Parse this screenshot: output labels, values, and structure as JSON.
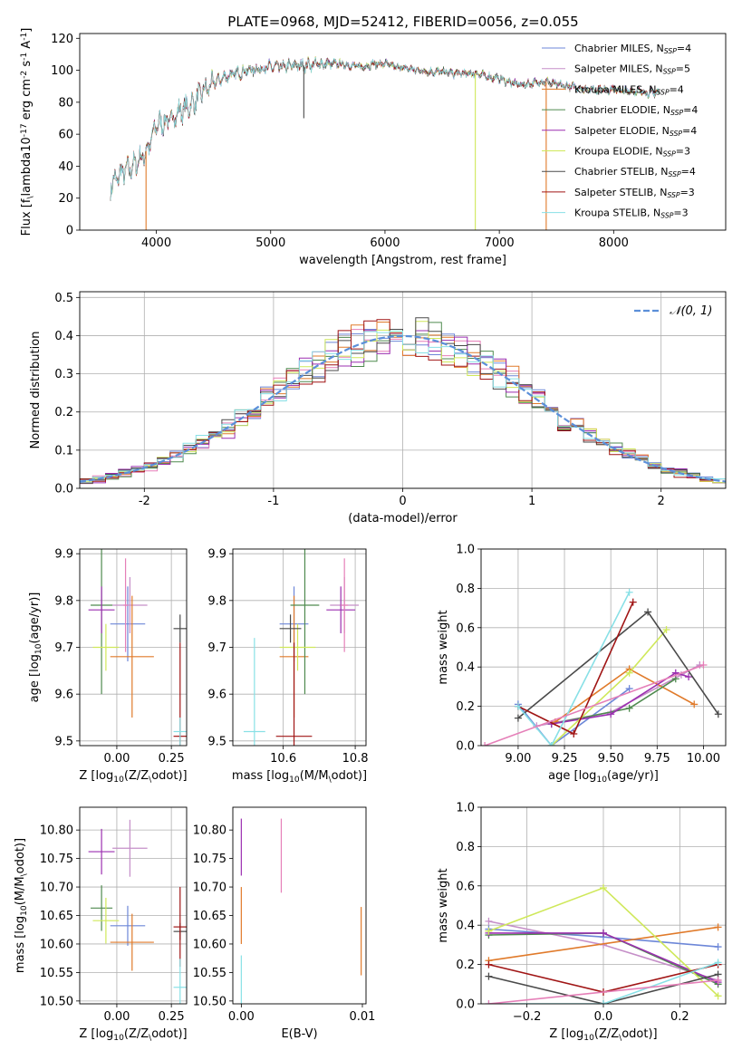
{
  "figure": {
    "title": "PLATE=0968, MJD=52412, FIBERID=0056, z=0.055"
  },
  "colors": {
    "Chabrier MILES": "#6d87d8",
    "Salpeter MILES": "#c58fc8",
    "Kroupa MILES": "#e07a2a",
    "Chabrier ELODIE": "#4f8a4f",
    "Salpeter ELODIE": "#9b2fb0",
    "Kroupa ELODIE": "#cfe85a",
    "Chabrier STELIB": "#4a4a4a",
    "Salpeter STELIB": "#a01515",
    "Kroupa STELIB": "#88e0e6",
    "normal": "#5b8fd9",
    "pink": "#e57fb8"
  },
  "chart_data": [
    {
      "id": "spectrum",
      "type": "line",
      "xlabel": "wavelength [Angstrom, rest frame]",
      "ylabel": "Flux [f$_\\lambda$10$^{-17}$ erg cm$^{-2}$ s$^{-1}$ A$^{-1}$]",
      "xlim": [
        3330,
        8980
      ],
      "ylim": [
        0,
        123
      ],
      "xticks": [
        4000,
        5000,
        6000,
        7000,
        8000
      ],
      "yticks": [
        0,
        20,
        40,
        60,
        80,
        100,
        120
      ],
      "grid": false,
      "legend_position": "upper right",
      "x_range": [
        3600,
        8400
      ],
      "spectrum_shape": [
        [
          3600,
          28
        ],
        [
          3700,
          36
        ],
        [
          3800,
          40
        ],
        [
          3900,
          48
        ],
        [
          3950,
          55
        ],
        [
          4000,
          66
        ],
        [
          4100,
          68
        ],
        [
          4200,
          74
        ],
        [
          4300,
          78
        ],
        [
          4400,
          86
        ],
        [
          4500,
          92
        ],
        [
          4600,
          96
        ],
        [
          4700,
          98
        ],
        [
          4800,
          100
        ],
        [
          4900,
          101
        ],
        [
          5000,
          102
        ],
        [
          5100,
          102
        ],
        [
          5200,
          103
        ],
        [
          5300,
          103
        ],
        [
          5400,
          104
        ],
        [
          5500,
          104
        ],
        [
          5600,
          104
        ],
        [
          5700,
          103
        ],
        [
          5800,
          102
        ],
        [
          5900,
          104
        ],
        [
          6000,
          104
        ],
        [
          6100,
          102
        ],
        [
          6200,
          101
        ],
        [
          6300,
          100
        ],
        [
          6400,
          99
        ],
        [
          6500,
          99
        ],
        [
          6600,
          98
        ],
        [
          6700,
          98
        ],
        [
          6800,
          98
        ],
        [
          6900,
          96
        ],
        [
          7000,
          95
        ],
        [
          7100,
          92
        ],
        [
          7200,
          91
        ],
        [
          7300,
          92
        ],
        [
          7400,
          93
        ],
        [
          7500,
          91
        ],
        [
          7600,
          90
        ],
        [
          7700,
          89
        ],
        [
          7800,
          88
        ],
        [
          7900,
          88
        ],
        [
          8000,
          88
        ],
        [
          8100,
          87
        ],
        [
          8200,
          87
        ],
        [
          8300,
          86
        ],
        [
          8400,
          86
        ]
      ],
      "spikes": [
        {
          "x": 3910,
          "y": 0
        },
        {
          "x": 5290,
          "y": 70
        },
        {
          "x": 6790,
          "y": 0
        },
        {
          "x": 7410,
          "y": 0
        }
      ],
      "series": [
        {
          "name": "Chabrier MILES",
          "nssp": "4"
        },
        {
          "name": "Salpeter MILES",
          "nssp": "5"
        },
        {
          "name": "Kroupa MILES",
          "nssp": "4"
        },
        {
          "name": "Chabrier ELODIE",
          "nssp": "4"
        },
        {
          "name": "Salpeter ELODIE",
          "nssp": "4"
        },
        {
          "name": "Kroupa ELODIE",
          "nssp": "3"
        },
        {
          "name": "Chabrier STELIB",
          "nssp": "4"
        },
        {
          "name": "Salpeter STELIB",
          "nssp": "3"
        },
        {
          "name": "Kroupa STELIB",
          "nssp": "3"
        }
      ]
    },
    {
      "id": "residuals",
      "type": "line",
      "xlabel": "(data-model)/error",
      "ylabel": "Normed distribution",
      "xlim": [
        -2.5,
        2.5
      ],
      "ylim": [
        0,
        0.515
      ],
      "xticks": [
        -2,
        -1,
        0,
        1,
        2
      ],
      "yticks": [
        0.0,
        0.1,
        0.2,
        0.3,
        0.4,
        0.5
      ],
      "grid": true,
      "legend_position": "upper right",
      "reference_curve": {
        "name": "𝒩(0, 1)",
        "mean": 0,
        "sigma": 1
      },
      "bin_width": 0.1,
      "histogram_series": [
        "Chabrier MILES",
        "Salpeter MILES",
        "Kroupa MILES",
        "Chabrier ELODIE",
        "Salpeter ELODIE",
        "Kroupa ELODIE",
        "Chabrier STELIB",
        "Salpeter STELIB",
        "Kroupa STELIB"
      ]
    },
    {
      "id": "z-age",
      "type": "scatter",
      "xlabel": "Z [log$_{10}$(Z/Z$_\\odot$)]",
      "ylabel": "age  [log$_{10}$(age/yr)]",
      "xlim": [
        -0.17,
        0.32
      ],
      "ylim": [
        9.49,
        9.91
      ],
      "xticks": [
        0.0,
        0.25
      ],
      "xticklabels": [
        "0.00",
        "0.25"
      ],
      "yticks": [
        9.5,
        9.6,
        9.7,
        9.8,
        9.9
      ],
      "grid": true,
      "errorbars": [
        {
          "series": "Chabrier MILES",
          "x": 0.05,
          "y": 9.75,
          "xerr": 0.08,
          "yerr": 0.08
        },
        {
          "series": "Salpeter MILES",
          "x": 0.06,
          "y": 9.79,
          "xerr": 0.08,
          "yerr": 0.06
        },
        {
          "series": "Kroupa MILES",
          "x": 0.07,
          "y": 9.68,
          "xerr": 0.1,
          "yerr": 0.13
        },
        {
          "series": "Chabrier ELODIE",
          "x": -0.07,
          "y": 9.79,
          "xerr": 0.05,
          "yerr": 0.19
        },
        {
          "series": "Salpeter ELODIE",
          "x": -0.07,
          "y": 9.78,
          "xerr": 0.06,
          "yerr": 0.05
        },
        {
          "series": "Kroupa ELODIE",
          "x": -0.05,
          "y": 9.7,
          "xerr": 0.06,
          "yerr": 0.05
        },
        {
          "series": "Chabrier STELIB",
          "x": 0.29,
          "y": 9.74,
          "xerr": 0.03,
          "yerr": 0.03
        },
        {
          "series": "Salpeter STELIB",
          "x": 0.29,
          "y": 9.51,
          "xerr": 0.03,
          "yerr": 0.2
        },
        {
          "series": "Kroupa STELIB",
          "x": 0.29,
          "y": 9.52,
          "xerr": 0.03,
          "yerr": 0.03
        },
        {
          "series": "pink",
          "x": 0.04,
          "y": 9.79,
          "xerr": 0.01,
          "yerr": 0.1
        }
      ]
    },
    {
      "id": "mass-age",
      "type": "scatter",
      "xlabel": "mass [log$_{10}$(M/M$_\\odot$)]",
      "ylabel": "",
      "xlim": [
        10.46,
        10.83
      ],
      "ylim": [
        9.49,
        9.91
      ],
      "xticks": [
        10.6,
        10.8
      ],
      "xticklabels": [
        "10.6",
        "10.8"
      ],
      "yticks": [
        9.5,
        9.6,
        9.7,
        9.8,
        9.9
      ],
      "grid": true,
      "errorbars": [
        {
          "series": "Chabrier MILES",
          "x": 10.63,
          "y": 9.75,
          "xerr": 0.04,
          "yerr": 0.08
        },
        {
          "series": "Salpeter MILES",
          "x": 10.77,
          "y": 9.79,
          "xerr": 0.04,
          "yerr": 0.06
        },
        {
          "series": "Kroupa MILES",
          "x": 10.63,
          "y": 9.68,
          "xerr": 0.04,
          "yerr": 0.13
        },
        {
          "series": "Chabrier ELODIE",
          "x": 10.66,
          "y": 9.79,
          "xerr": 0.04,
          "yerr": 0.19
        },
        {
          "series": "Salpeter ELODIE",
          "x": 10.76,
          "y": 9.78,
          "xerr": 0.04,
          "yerr": 0.05
        },
        {
          "series": "Kroupa ELODIE",
          "x": 10.64,
          "y": 9.7,
          "xerr": 0.05,
          "yerr": 0.05
        },
        {
          "series": "Chabrier STELIB",
          "x": 10.62,
          "y": 9.74,
          "xerr": 0.03,
          "yerr": 0.03
        },
        {
          "series": "Salpeter STELIB",
          "x": 10.63,
          "y": 9.51,
          "xerr": 0.05,
          "yerr": 0.2
        },
        {
          "series": "Kroupa STELIB",
          "x": 10.52,
          "y": 9.52,
          "xerr": 0.03,
          "yerr": 0.2
        },
        {
          "series": "pink",
          "x": 10.77,
          "y": 9.79,
          "xerr": 0.01,
          "yerr": 0.1
        }
      ]
    },
    {
      "id": "age-weight",
      "type": "line",
      "xlabel": "age  [log$_{10}$(age/yr)]",
      "ylabel": "mass weight",
      "xlim": [
        8.8,
        10.12
      ],
      "ylim": [
        0,
        1.0
      ],
      "xticks": [
        9.0,
        9.25,
        9.5,
        9.75,
        10.0
      ],
      "xticklabels": [
        "9.00",
        "9.25",
        "9.50",
        "9.75",
        "10.00"
      ],
      "yticks": [
        0.0,
        0.2,
        0.4,
        0.6,
        0.8,
        1.0
      ],
      "grid": true,
      "series": [
        {
          "name": "Chabrier MILES",
          "x": [
            9.0,
            9.18,
            9.6
          ],
          "y": [
            0.21,
            0.0,
            0.29
          ]
        },
        {
          "name": "Salpeter MILES",
          "x": [
            9.1,
            9.5,
            9.88,
            9.98
          ],
          "y": [
            0.1,
            0.17,
            0.36,
            0.41
          ]
        },
        {
          "name": "Kroupa MILES",
          "x": [
            9.2,
            9.6,
            9.95
          ],
          "y": [
            0.12,
            0.39,
            0.21
          ]
        },
        {
          "name": "Chabrier ELODIE",
          "x": [
            9.18,
            9.6,
            9.85
          ],
          "y": [
            0.11,
            0.19,
            0.34
          ]
        },
        {
          "name": "Salpeter ELODIE",
          "x": [
            9.18,
            9.5,
            9.85,
            9.92
          ],
          "y": [
            0.11,
            0.16,
            0.37,
            0.35
          ]
        },
        {
          "name": "Kroupa ELODIE",
          "x": [
            9.18,
            9.6,
            9.8
          ],
          "y": [
            0.0,
            0.37,
            0.59
          ]
        },
        {
          "name": "Chabrier STELIB",
          "x": [
            9.0,
            9.7,
            10.08
          ],
          "y": [
            0.14,
            0.68,
            0.16
          ]
        },
        {
          "name": "Salpeter STELIB",
          "x": [
            9.0,
            9.3,
            9.62
          ],
          "y": [
            0.2,
            0.06,
            0.73
          ]
        },
        {
          "name": "Kroupa STELIB",
          "x": [
            9.0,
            9.18,
            9.6
          ],
          "y": [
            0.2,
            0.0,
            0.78
          ]
        },
        {
          "name": "pink",
          "x": [
            8.82,
            10.0
          ],
          "y": [
            0.0,
            0.41
          ]
        }
      ]
    },
    {
      "id": "z-mass",
      "type": "scatter",
      "xlabel": "Z [log$_{10}$(Z/Z$_\\odot$)]",
      "ylabel": "mass [log$_{10}$(M/M$_\\odot$)]",
      "xlim": [
        -0.17,
        0.32
      ],
      "ylim": [
        10.495,
        10.84
      ],
      "xticks": [
        0.0,
        0.25
      ],
      "xticklabels": [
        "0.00",
        "0.25"
      ],
      "yticks": [
        10.5,
        10.55,
        10.6,
        10.65,
        10.7,
        10.75,
        10.8
      ],
      "yticklabels": [
        "10.50",
        "10.55",
        "10.60",
        "10.65",
        "10.70",
        "10.75",
        "10.80"
      ],
      "grid": true,
      "errorbars": [
        {
          "series": "Chabrier MILES",
          "x": 0.05,
          "y": 10.632,
          "xerr": 0.08,
          "yerr": 0.035
        },
        {
          "series": "Salpeter MILES",
          "x": 0.06,
          "y": 10.768,
          "xerr": 0.08,
          "yerr": 0.05
        },
        {
          "series": "Kroupa MILES",
          "x": 0.07,
          "y": 10.603,
          "xerr": 0.1,
          "yerr": 0.05
        },
        {
          "series": "Chabrier ELODIE",
          "x": -0.07,
          "y": 10.663,
          "xerr": 0.05,
          "yerr": 0.04
        },
        {
          "series": "Salpeter ELODIE",
          "x": -0.07,
          "y": 10.762,
          "xerr": 0.06,
          "yerr": 0.04
        },
        {
          "series": "Kroupa ELODIE",
          "x": -0.05,
          "y": 10.641,
          "xerr": 0.06,
          "yerr": 0.04
        },
        {
          "series": "Chabrier STELIB",
          "x": 0.29,
          "y": 10.622,
          "xerr": 0.03,
          "yerr": 0.015
        },
        {
          "series": "Salpeter STELIB",
          "x": 0.29,
          "y": 10.63,
          "xerr": 0.03,
          "yerr": 0.07
        },
        {
          "series": "Kroupa STELIB",
          "x": 0.29,
          "y": 10.524,
          "xerr": 0.03,
          "yerr": 0.05
        }
      ]
    },
    {
      "id": "ebv-mass",
      "type": "scatter",
      "xlabel": "E(B-V)",
      "ylabel": "",
      "xlim": [
        -0.0007,
        0.0103
      ],
      "ylim": [
        10.495,
        10.84
      ],
      "xticks": [
        0.0,
        0.01
      ],
      "xticklabels": [
        "0.00",
        "0.01"
      ],
      "yticks": [
        10.5,
        10.55,
        10.6,
        10.65,
        10.7,
        10.75,
        10.8
      ],
      "yticklabels": [
        "10.50",
        "10.55",
        "10.60",
        "10.65",
        "10.70",
        "10.75",
        "10.80"
      ],
      "grid": false,
      "errorbars": [
        {
          "series": "Salpeter ELODIE",
          "x": 0.0,
          "y": 10.77,
          "xerr": 0,
          "yerr": 0.05
        },
        {
          "series": "Kroupa MILES",
          "x": 0.0,
          "y": 10.65,
          "xerr": 0,
          "yerr": 0.05
        },
        {
          "series": "Kroupa STELIB",
          "x": 0.0,
          "y": 10.53,
          "xerr": 0,
          "yerr": 0.05
        },
        {
          "series": "pink",
          "x": 0.0033,
          "y": 10.755,
          "xerr": 0,
          "yerr": 0.065
        },
        {
          "series": "Kroupa MILES",
          "x": 0.0099,
          "y": 10.605,
          "xerr": 0,
          "yerr": 0.06
        }
      ]
    },
    {
      "id": "z-weight",
      "type": "line",
      "xlabel": "Z [log$_{10}$(Z/Z$_\\odot$)]",
      "ylabel": "mass weight",
      "xlim": [
        -0.32,
        0.32
      ],
      "ylim": [
        0,
        1.0
      ],
      "xticks": [
        -0.2,
        0.0,
        0.2
      ],
      "xticklabels": [
        "−0.2",
        "0.0",
        "0.2"
      ],
      "yticks": [
        0.0,
        0.2,
        0.4,
        0.6,
        0.8,
        1.0
      ],
      "grid": true,
      "series": [
        {
          "name": "Chabrier MILES",
          "x": [
            -0.3,
            0.0,
            0.3
          ],
          "y": [
            0.38,
            0.34,
            0.29
          ]
        },
        {
          "name": "Salpeter MILES",
          "x": [
            -0.3,
            0.0,
            0.3
          ],
          "y": [
            0.42,
            0.3,
            0.12
          ]
        },
        {
          "name": "Kroupa MILES",
          "x": [
            -0.3,
            0.3
          ],
          "y": [
            0.22,
            0.39
          ]
        },
        {
          "name": "Chabrier ELODIE",
          "x": [
            -0.3,
            0.0,
            0.3
          ],
          "y": [
            0.35,
            0.36,
            0.1
          ]
        },
        {
          "name": "Salpeter ELODIE",
          "x": [
            -0.3,
            0.0,
            0.3
          ],
          "y": [
            0.36,
            0.36,
            0.11
          ]
        },
        {
          "name": "Kroupa ELODIE",
          "x": [
            -0.3,
            0.0,
            0.3
          ],
          "y": [
            0.37,
            0.59,
            0.04
          ]
        },
        {
          "name": "Chabrier STELIB",
          "x": [
            -0.3,
            0.0,
            0.3
          ],
          "y": [
            0.14,
            0.0,
            0.15
          ]
        },
        {
          "name": "Salpeter STELIB",
          "x": [
            -0.3,
            0.0,
            0.3
          ],
          "y": [
            0.2,
            0.06,
            0.2
          ]
        },
        {
          "name": "Kroupa STELIB",
          "x": [
            -0.3,
            0.0,
            0.3
          ],
          "y": [
            0.0,
            0.0,
            0.21
          ]
        },
        {
          "name": "pink",
          "x": [
            -0.3,
            0.3
          ],
          "y": [
            0.0,
            0.12
          ]
        }
      ]
    }
  ]
}
